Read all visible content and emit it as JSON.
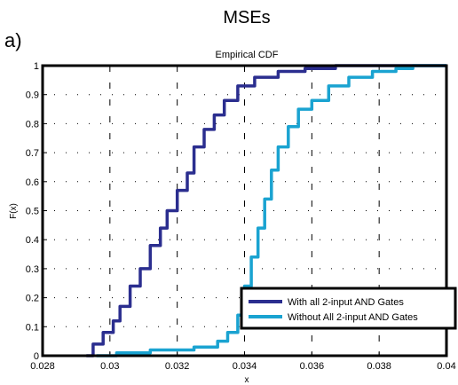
{
  "figure": {
    "panel_label": "a)",
    "heading": "MSEs"
  },
  "chart_data": {
    "type": "line",
    "title": "Empirical CDF",
    "xlabel": "x",
    "ylabel": "F(x)",
    "xlim": [
      0.028,
      0.04
    ],
    "ylim": [
      0,
      1
    ],
    "xticks": [
      "0.028",
      "0.03",
      "0.032",
      "0.034",
      "0.036",
      "0.038",
      "0.04"
    ],
    "yticks": [
      "0",
      "0.1",
      "0.2",
      "0.3",
      "0.4",
      "0.5",
      "0.6",
      "0.7",
      "0.8",
      "0.9",
      "1"
    ],
    "grid": true,
    "legend_position": "bottom-right",
    "series": [
      {
        "name": "With all 2-input AND Gates",
        "color": "#2b2e8f",
        "points": [
          [
            0.0293,
            0.0
          ],
          [
            0.0295,
            0.04
          ],
          [
            0.0298,
            0.08
          ],
          [
            0.0301,
            0.12
          ],
          [
            0.0303,
            0.17
          ],
          [
            0.0306,
            0.24
          ],
          [
            0.0309,
            0.3
          ],
          [
            0.0312,
            0.38
          ],
          [
            0.0315,
            0.44
          ],
          [
            0.0317,
            0.5
          ],
          [
            0.032,
            0.57
          ],
          [
            0.0323,
            0.63
          ],
          [
            0.0325,
            0.72
          ],
          [
            0.0328,
            0.78
          ],
          [
            0.0331,
            0.83
          ],
          [
            0.0334,
            0.88
          ],
          [
            0.0338,
            0.93
          ],
          [
            0.0343,
            0.96
          ],
          [
            0.035,
            0.98
          ],
          [
            0.0358,
            0.99
          ],
          [
            0.0367,
            1.0
          ],
          [
            0.04,
            1.0
          ]
        ]
      },
      {
        "name": "Without All 2-input AND Gates",
        "color": "#1aa3d1",
        "points": [
          [
            0.0296,
            0.0
          ],
          [
            0.0302,
            0.01
          ],
          [
            0.0312,
            0.02
          ],
          [
            0.0325,
            0.03
          ],
          [
            0.0332,
            0.05
          ],
          [
            0.0335,
            0.08
          ],
          [
            0.0338,
            0.14
          ],
          [
            0.034,
            0.24
          ],
          [
            0.0342,
            0.34
          ],
          [
            0.0344,
            0.44
          ],
          [
            0.0346,
            0.54
          ],
          [
            0.0348,
            0.64
          ],
          [
            0.035,
            0.72
          ],
          [
            0.0353,
            0.79
          ],
          [
            0.0356,
            0.85
          ],
          [
            0.036,
            0.88
          ],
          [
            0.0365,
            0.93
          ],
          [
            0.0371,
            0.96
          ],
          [
            0.0378,
            0.98
          ],
          [
            0.0385,
            0.99
          ],
          [
            0.039,
            1.0
          ],
          [
            0.04,
            1.0
          ]
        ]
      }
    ]
  }
}
